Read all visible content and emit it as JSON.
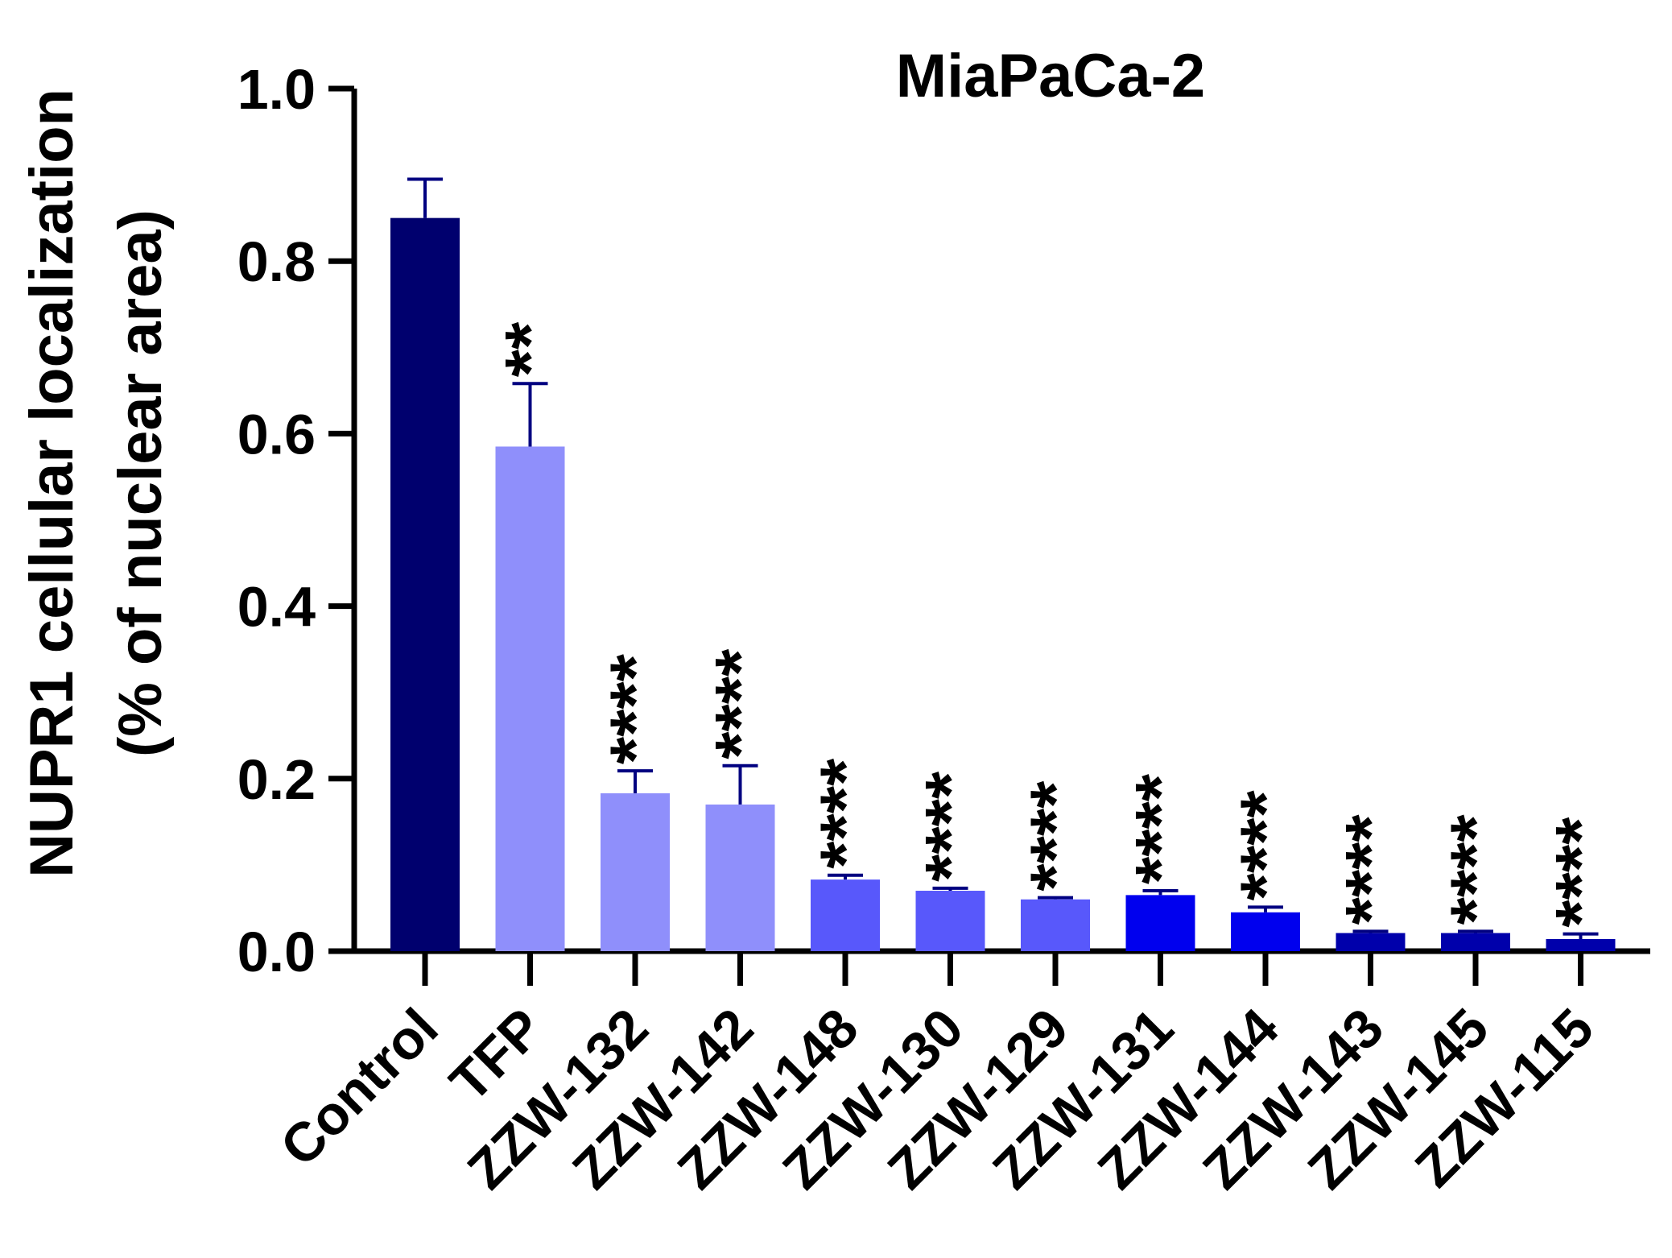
{
  "chart_data": {
    "type": "bar",
    "title": "MiaPaCa-2",
    "xlabel": "",
    "ylabel": [
      "NUPR1 cellular localization",
      "(% of nuclear area)"
    ],
    "ylim": [
      0,
      1.0
    ],
    "yticks": [
      "0.0",
      "0.2",
      "0.4",
      "0.6",
      "0.8",
      "1.0"
    ],
    "ytick_values": [
      0,
      0.2,
      0.4,
      0.6,
      0.8,
      1.0
    ],
    "grid": false,
    "categories": [
      "Control",
      "TFP",
      "ZZW-132",
      "ZZW-142",
      "ZZW-148",
      "ZZW-130",
      "ZZW-129",
      "ZZW-131",
      "ZZW-144",
      "ZZW-143",
      "ZZW-145",
      "ZZW-115"
    ],
    "values": [
      0.85,
      0.585,
      0.183,
      0.17,
      0.083,
      0.07,
      0.06,
      0.065,
      0.045,
      0.021,
      0.021,
      0.014
    ],
    "errors": [
      0.045,
      0.073,
      0.026,
      0.045,
      0.005,
      0.003,
      0.002,
      0.005,
      0.006,
      0.002,
      0.002,
      0.006
    ],
    "significance": [
      "",
      "**",
      "****",
      "****",
      "****",
      "****",
      "****",
      "****",
      "****",
      "****",
      "****",
      "****"
    ],
    "colors": [
      "#00006e",
      "#8f8ffb",
      "#8f8ffb",
      "#8f8ffb",
      "#5858fb",
      "#5858fb",
      "#5858fb",
      "#0000ee",
      "#0000ee",
      "#0000ab",
      "#0000ab",
      "#0000ab"
    ],
    "error_color": "#000080"
  }
}
